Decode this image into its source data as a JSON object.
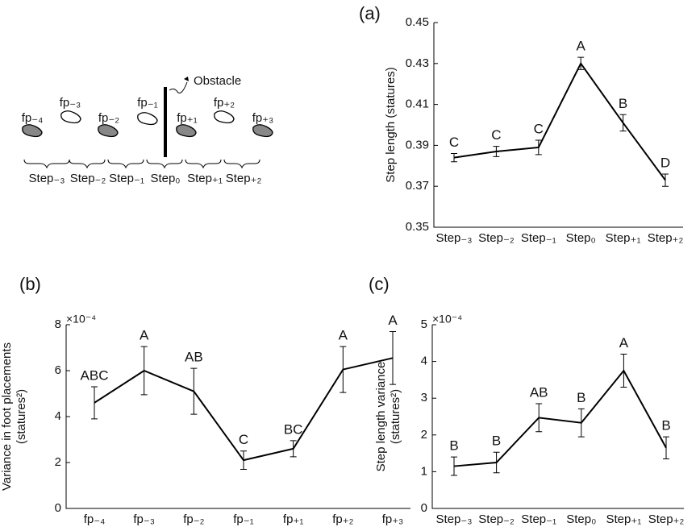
{
  "diagram": {
    "footprints": [
      "fp₋₄",
      "fp₋₃",
      "fp₋₂",
      "fp₋₁",
      "fp₊₁",
      "fp₊₂",
      "fp₊₃"
    ],
    "obstacle": "Obstacle",
    "steps": [
      "Step₋₃",
      "Step₋₂",
      "Step₋₁",
      "Step₀",
      "Step₊₁",
      "Step₊₂"
    ]
  },
  "chart_data": [
    {
      "type": "line",
      "panel": "(a)",
      "ylabel": [
        "Step length (statures)"
      ],
      "categories": [
        "Step₋₃",
        "Step₋₂",
        "Step₋₁",
        "Step₀",
        "Step₊₁",
        "Step₊₂"
      ],
      "series": [
        {
          "color": "#000000",
          "values": [
            0.384,
            0.387,
            0.389,
            0.43,
            0.401,
            0.373
          ],
          "errors": [
            0.002,
            0.0025,
            0.0035,
            0.003,
            0.004,
            0.003
          ]
        }
      ],
      "annotations": [
        "C",
        "C",
        "C",
        "A",
        "B",
        "D"
      ],
      "ylim": [
        0.35,
        0.45
      ],
      "yticks": [
        0.35,
        0.37,
        0.39,
        0.41,
        0.43,
        0.45
      ]
    },
    {
      "type": "line",
      "panel": "(b)",
      "ylabel": [
        "Variance in foot placements",
        "(statures²)"
      ],
      "multiplier": "×10⁻⁴",
      "categories": [
        "fp₋₄",
        "fp₋₃",
        "fp₋₂",
        "fp₋₁",
        "fp₊₁",
        "fp₊₂",
        "fp₊₃"
      ],
      "series": [
        {
          "color": "#000000",
          "values": [
            4.6,
            6.0,
            5.1,
            2.1,
            2.6,
            6.05,
            6.55
          ],
          "errors": [
            0.7,
            1.05,
            1.0,
            0.4,
            0.35,
            1.0,
            1.15
          ]
        }
      ],
      "annotations": [
        "ABC",
        "A",
        "AB",
        "C",
        "BC",
        "A",
        "A"
      ],
      "ylim": [
        0,
        8
      ],
      "yticks": [
        0,
        2,
        4,
        6,
        8
      ]
    },
    {
      "type": "line",
      "panel": "(c)",
      "ylabel": [
        "Step length variance",
        "(statures²)"
      ],
      "multiplier": "×10⁻⁴",
      "categories": [
        "Step₋₃",
        "Step₋₂",
        "Step₋₁",
        "Step₀",
        "Step₊₁",
        "Step₊₂"
      ],
      "series": [
        {
          "color": "#000000",
          "values": [
            1.15,
            1.25,
            2.47,
            2.33,
            3.75,
            1.65
          ],
          "errors": [
            0.25,
            0.28,
            0.38,
            0.38,
            0.45,
            0.3
          ]
        }
      ],
      "annotations": [
        "B",
        "B",
        "AB",
        "B",
        "A",
        "B"
      ],
      "ylim": [
        0,
        5
      ],
      "yticks": [
        0,
        1,
        2,
        3,
        4,
        5
      ]
    }
  ]
}
